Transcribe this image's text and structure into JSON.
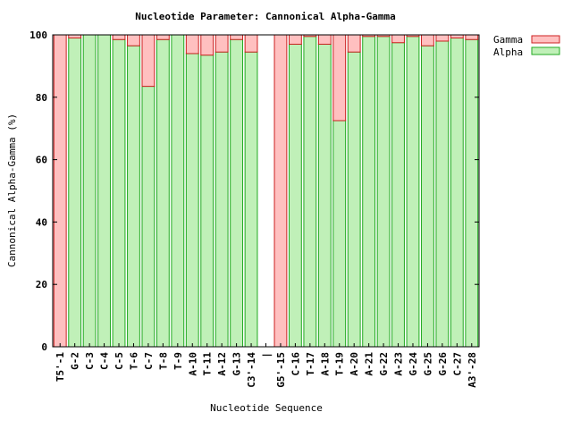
{
  "chart_data": {
    "type": "bar",
    "stacked": true,
    "title": "Nucleotide Parameter: Cannonical Alpha-Gamma",
    "xlabel": "Nucleotide Sequence",
    "ylabel": "Cannonical Alpha-Gamma (%)",
    "ylim": [
      0,
      100
    ],
    "yticks": [
      0,
      20,
      40,
      60,
      80,
      100
    ],
    "grid": false,
    "legend_position": "top-right, outside plot",
    "categories": [
      "T5'-1",
      "G-2",
      "C-3",
      "C-4",
      "C-5",
      "T-6",
      "C-7",
      "T-8",
      "T-9",
      "A-10",
      "T-11",
      "A-12",
      "G-13",
      "C3'-14",
      "|",
      "G5'-15",
      "C-16",
      "T-17",
      "A-18",
      "T-19",
      "A-20",
      "A-21",
      "G-22",
      "A-23",
      "G-24",
      "G-25",
      "G-26",
      "C-27",
      "A3'-28"
    ],
    "series": [
      {
        "name": "Alpha",
        "color": "#c0f0b8",
        "edge": "#22aa22",
        "values": [
          0,
          99,
          100,
          100,
          98.5,
          96.5,
          83.5,
          98.5,
          100,
          94,
          93.5,
          94.5,
          98.5,
          94.5,
          null,
          0,
          97,
          99.5,
          97,
          72.5,
          94.5,
          99.5,
          99.5,
          97.5,
          99.5,
          96.5,
          98,
          99,
          98.5
        ]
      },
      {
        "name": "Gamma",
        "color": "#ffc0c0",
        "edge": "#cc2222",
        "values": [
          100,
          1,
          0,
          0,
          1.5,
          3.5,
          16.5,
          1.5,
          0,
          6,
          6.5,
          5.5,
          1.5,
          5.5,
          null,
          100,
          3,
          0.5,
          3,
          27.5,
          5.5,
          0.5,
          0.5,
          2.5,
          0.5,
          3.5,
          2,
          1,
          1.5
        ]
      }
    ],
    "legend": [
      "Gamma",
      "Alpha"
    ]
  }
}
